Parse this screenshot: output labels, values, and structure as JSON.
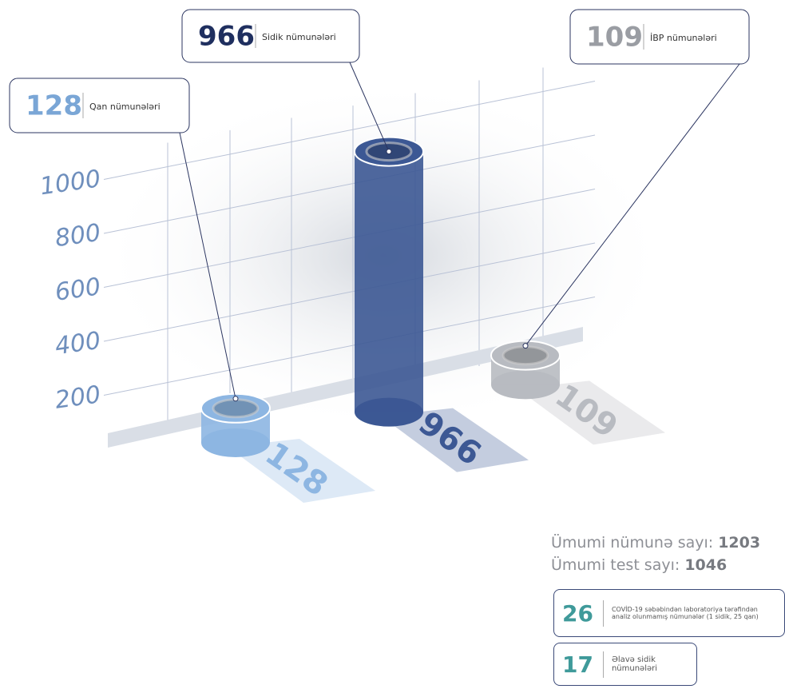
{
  "chart_data": {
    "type": "bar",
    "categories": [
      "Qan nümunələri",
      "Sidik nümunələri",
      "İBP nümunələri"
    ],
    "values": [
      128,
      966,
      109
    ],
    "colors": [
      "#8db6e2",
      "#3c5894",
      "#b8bbc1"
    ],
    "label_colors": [
      "#7aa6d6",
      "#1f2f5f",
      "#9a9da3"
    ],
    "ylim": [
      0,
      1000
    ],
    "yticks": [
      200,
      400,
      600,
      800,
      1000
    ],
    "grid": true
  },
  "summary": [
    {
      "label": "Ümumi nümunə sayı:",
      "value": 1203
    },
    {
      "label": "Ümumi test sayı:",
      "value": 1046
    }
  ],
  "notes": [
    {
      "value": 26,
      "text": "COVİD-19 səbəbindən laboratoriya tərəfindən analiz olunmamış nümunələr (1 sidik, 25 qan)"
    },
    {
      "value": 17,
      "text": "Əlavə sidik nümunələri"
    }
  ]
}
